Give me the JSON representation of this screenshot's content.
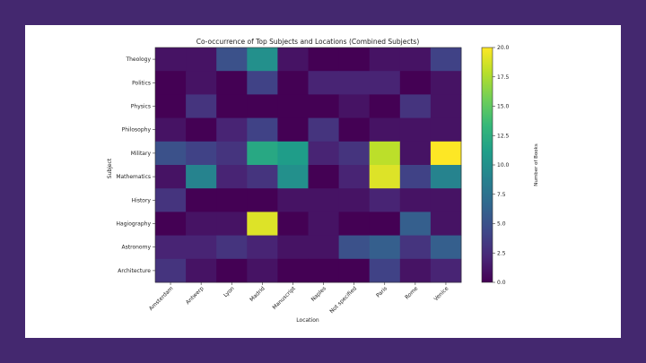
{
  "chart_data": {
    "type": "heatmap",
    "title": "Co-occurrence of Top Subjects and Locations (Combined Subjects)",
    "xlabel": "Location",
    "ylabel": "Subject",
    "x_categories": [
      "Amsterdam",
      "Antwerp",
      "Lyon",
      "Madrid",
      "Manuscript",
      "Naples",
      "Not specified",
      "Paris",
      "Rome",
      "Venice"
    ],
    "y_categories": [
      "Theology",
      "Politics",
      "Physics",
      "Philosophy",
      "Military",
      "Mathematics",
      "History",
      "Hagiography",
      "Astronomy",
      "Architecture"
    ],
    "values": [
      [
        1,
        1,
        5,
        10,
        1,
        0,
        0,
        1,
        1,
        4
      ],
      [
        0,
        1,
        0,
        4,
        0,
        2,
        2,
        2,
        0,
        1
      ],
      [
        0,
        3,
        0,
        0,
        0,
        0,
        1,
        0,
        3,
        1
      ],
      [
        1,
        0,
        2,
        4,
        0,
        3,
        0,
        1,
        1,
        1
      ],
      [
        5,
        4,
        3,
        12,
        11,
        2,
        3,
        18,
        1,
        20
      ],
      [
        1,
        9,
        2,
        3,
        10,
        0,
        2,
        19,
        4,
        9
      ],
      [
        3,
        0,
        0,
        0,
        1,
        1,
        1,
        2,
        1,
        1
      ],
      [
        0,
        1,
        1,
        19,
        0,
        1,
        0,
        0,
        6,
        1
      ],
      [
        2,
        2,
        3,
        2,
        1,
        1,
        5,
        6,
        3,
        6
      ],
      [
        3,
        1,
        0,
        1,
        0,
        0,
        0,
        4,
        1,
        2
      ]
    ],
    "colorbar": {
      "label": "Number of Books",
      "min": 0,
      "max": 20,
      "ticks": [
        "0.0",
        "2.5",
        "5.0",
        "7.5",
        "10.0",
        "12.5",
        "15.0",
        "17.5",
        "20.0"
      ],
      "colormap": "viridis"
    }
  }
}
